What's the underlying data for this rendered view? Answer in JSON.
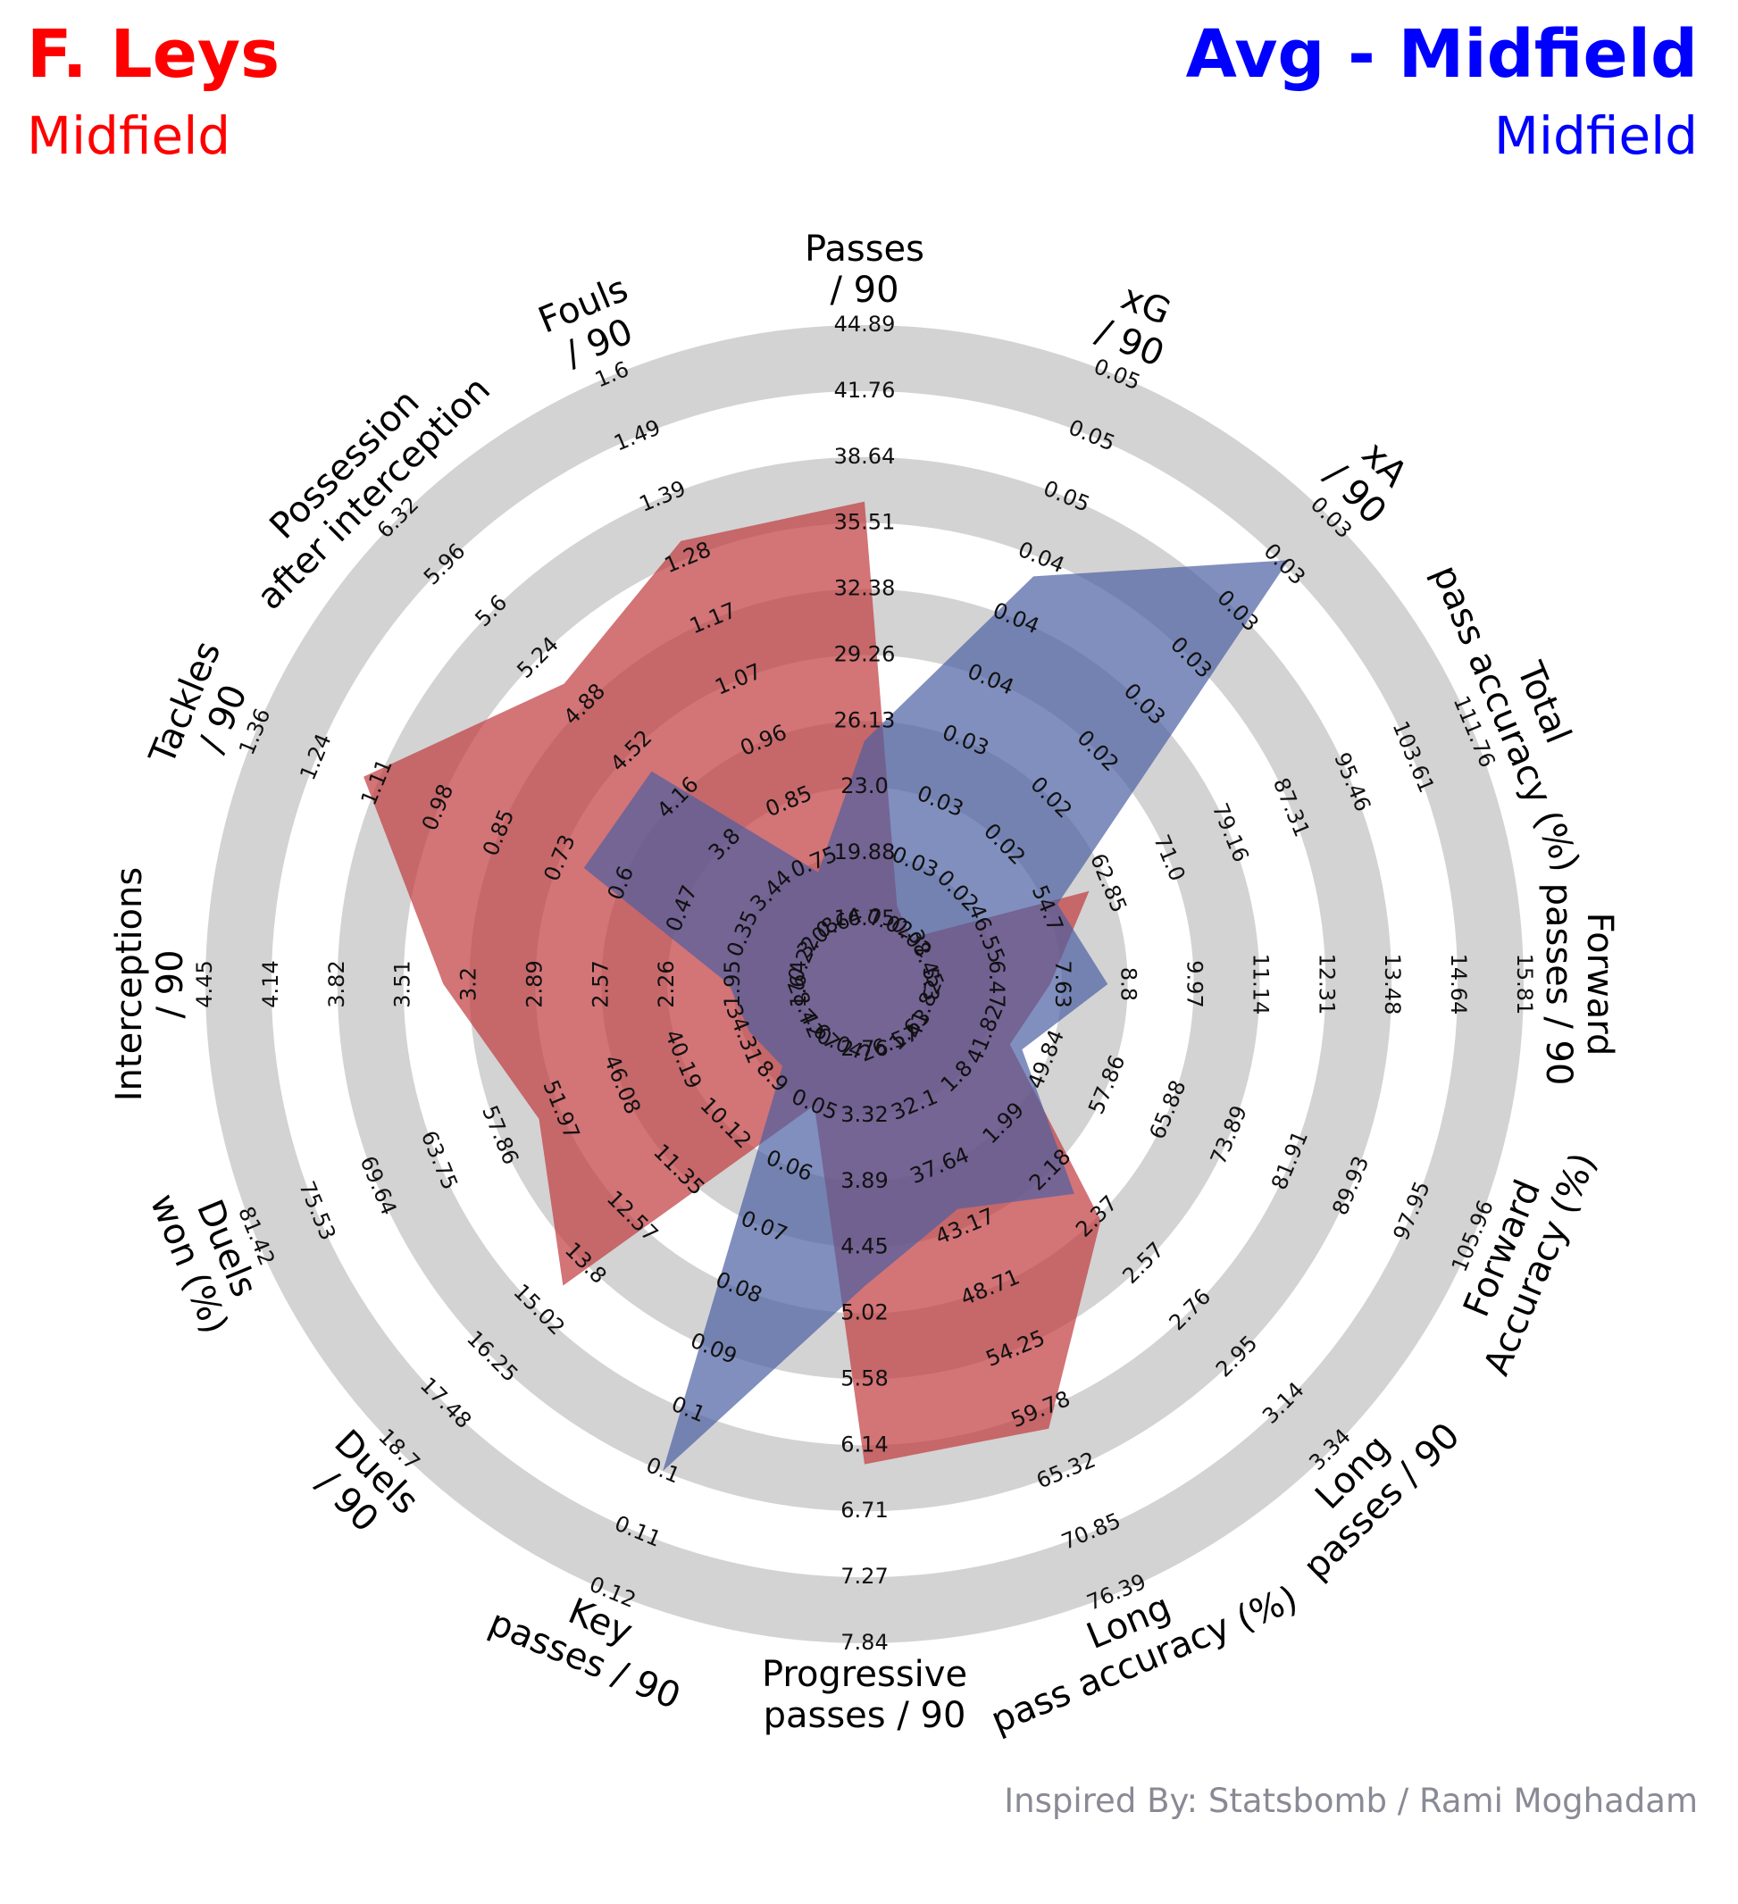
{
  "header": {
    "player_name": "F. Leys",
    "player_position": "Midfield",
    "avg_name": "Avg - Midfield",
    "avg_position": "Midfield"
  },
  "credit": "Inspired By: Statsbomb / Rami Moghadam",
  "colors": {
    "player": "#ff0000",
    "avg": "#0000ff",
    "player_fill": "#c0393d",
    "avg_fill": "#4b5fa3",
    "rings": "#d3d3d3",
    "credit": "#8a8a95"
  },
  "chart_data": {
    "type": "radar",
    "params": [
      {
        "label": [
          "Passes",
          "/ 90"
        ],
        "ticks": [
          "16.75",
          "19.88",
          "23.0",
          "26.13",
          "29.26",
          "32.38",
          "35.51",
          "38.64",
          "41.76",
          "44.89"
        ],
        "min": 13.62,
        "max": 44.89
      },
      {
        "label": [
          "xG",
          "/ 90"
        ],
        "ticks": [
          "0.02",
          "0.03",
          "0.03",
          "0.03",
          "0.04",
          "0.04",
          "0.04",
          "0.05",
          "0.05",
          "0.05"
        ],
        "min": 0.02,
        "max": 0.05
      },
      {
        "label": [
          "xA",
          "/ 90"
        ],
        "ticks": [
          "0.02",
          "0.02",
          "0.02",
          "0.02",
          "0.02",
          "0.03",
          "0.03",
          "0.03",
          "0.03",
          "0.03"
        ],
        "min": 0.02,
        "max": 0.03
      },
      {
        "label": [
          "Total",
          "pass accuracy (%)"
        ],
        "ticks": [
          "38.45",
          "46.55",
          "54.7",
          "62.85",
          "71.0",
          "79.16",
          "87.31",
          "95.46",
          "103.61",
          "111.76"
        ],
        "min": 30.3,
        "max": 111.76
      },
      {
        "label": [
          "Forward",
          "passes / 90"
        ],
        "ticks": [
          "5.3",
          "6.47",
          "7.63",
          "8.8",
          "9.97",
          "11.14",
          "12.31",
          "13.48",
          "14.64",
          "15.81"
        ],
        "min": 4.13,
        "max": 15.81
      },
      {
        "label": [
          "Forward",
          "Accuracy (%)"
        ],
        "ticks": [
          "41.82",
          "41.82",
          "49.84",
          "57.86",
          "65.88",
          "73.89",
          "81.91",
          "89.93",
          "97.95",
          "105.96"
        ],
        "min": 33.8,
        "max": 105.96
      },
      {
        "label": [
          "Long",
          "passes / 90"
        ],
        "ticks": [
          "1.63",
          "1.8",
          "1.99",
          "2.18",
          "2.37",
          "2.57",
          "2.76",
          "2.95",
          "3.14",
          "3.34"
        ],
        "min": 1.44,
        "max": 3.34
      },
      {
        "label": [
          "Long",
          "pass accuracy (%)"
        ],
        "ticks": [
          "26.57",
          "32.1",
          "37.64",
          "43.17",
          "48.71",
          "54.25",
          "59.78",
          "65.32",
          "70.85",
          "76.39"
        ],
        "min": 21.03,
        "max": 76.39
      },
      {
        "label": [
          "Progressive",
          "passes / 90"
        ],
        "ticks": [
          "2.76",
          "3.32",
          "3.89",
          "4.45",
          "5.02",
          "5.58",
          "6.14",
          "6.71",
          "7.27",
          "7.84"
        ],
        "min": 2.2,
        "max": 7.84
      },
      {
        "label": [
          "Key",
          "passes / 90"
        ],
        "ticks": [
          "0.04",
          "0.05",
          "0.06",
          "0.07",
          "0.08",
          "0.09",
          "0.1",
          "0.1",
          "0.11",
          "0.12"
        ],
        "min": 0.03,
        "max": 0.12
      },
      {
        "label": [
          "Duels",
          "/ 90"
        ],
        "ticks": [
          "7.67",
          "8.9",
          "10.12",
          "11.35",
          "12.57",
          "13.8",
          "15.02",
          "16.25",
          "17.48",
          "18.7"
        ],
        "min": 6.45,
        "max": 18.7
      },
      {
        "label": [
          "Duels",
          "won (%)"
        ],
        "ticks": [
          "28.42",
          "34.31",
          "40.19",
          "46.08",
          "51.97",
          "57.86",
          "63.75",
          "69.64",
          "75.53",
          "81.42"
        ],
        "min": 22.53,
        "max": 81.42
      },
      {
        "label": [
          "Interceptions",
          "/ 90"
        ],
        "ticks": [
          "1.64",
          "1.95",
          "2.26",
          "2.57",
          "2.89",
          "3.2",
          "3.51",
          "3.82",
          "4.14",
          "4.45"
        ],
        "min": 1.33,
        "max": 4.45
      },
      {
        "label": [
          "Tackles",
          "/ 90"
        ],
        "ticks": [
          "0.22",
          "0.35",
          "0.47",
          "0.6",
          "0.73",
          "0.85",
          "0.98",
          "1.11",
          "1.24",
          "1.36"
        ],
        "min": 0.09,
        "max": 1.36
      },
      {
        "label": [
          "Possession",
          "after interception"
        ],
        "ticks": [
          "3.08",
          "3.44",
          "3.8",
          "4.16",
          "4.52",
          "4.88",
          "5.24",
          "5.6",
          "5.96",
          "6.32"
        ],
        "min": 2.72,
        "max": 6.32
      },
      {
        "label": [
          "Fouls",
          "/ 90"
        ],
        "ticks": [
          "0.64",
          "0.75",
          "0.85",
          "0.96",
          "1.07",
          "1.17",
          "1.28",
          "1.39",
          "1.49",
          "1.6"
        ],
        "min": 0.54,
        "max": 1.6
      }
    ],
    "series": [
      {
        "name": "F. Leys",
        "values": [
          35.6,
          0.021,
          0.02,
          54.7,
          6.5,
          45.0,
          2.3,
          59.8,
          6.14,
          0.04,
          13.9,
          51.0,
          3.2,
          1.11,
          4.9,
          1.28
        ]
      },
      {
        "name": "Avg - Midfield",
        "values": [
          23.0,
          0.039,
          0.029,
          50.0,
          7.63,
          46.6,
          2.18,
          37.64,
          4.45,
          0.1,
          7.5,
          28.42,
          1.7,
          0.6,
          4.15,
          0.64
        ]
      }
    ]
  }
}
